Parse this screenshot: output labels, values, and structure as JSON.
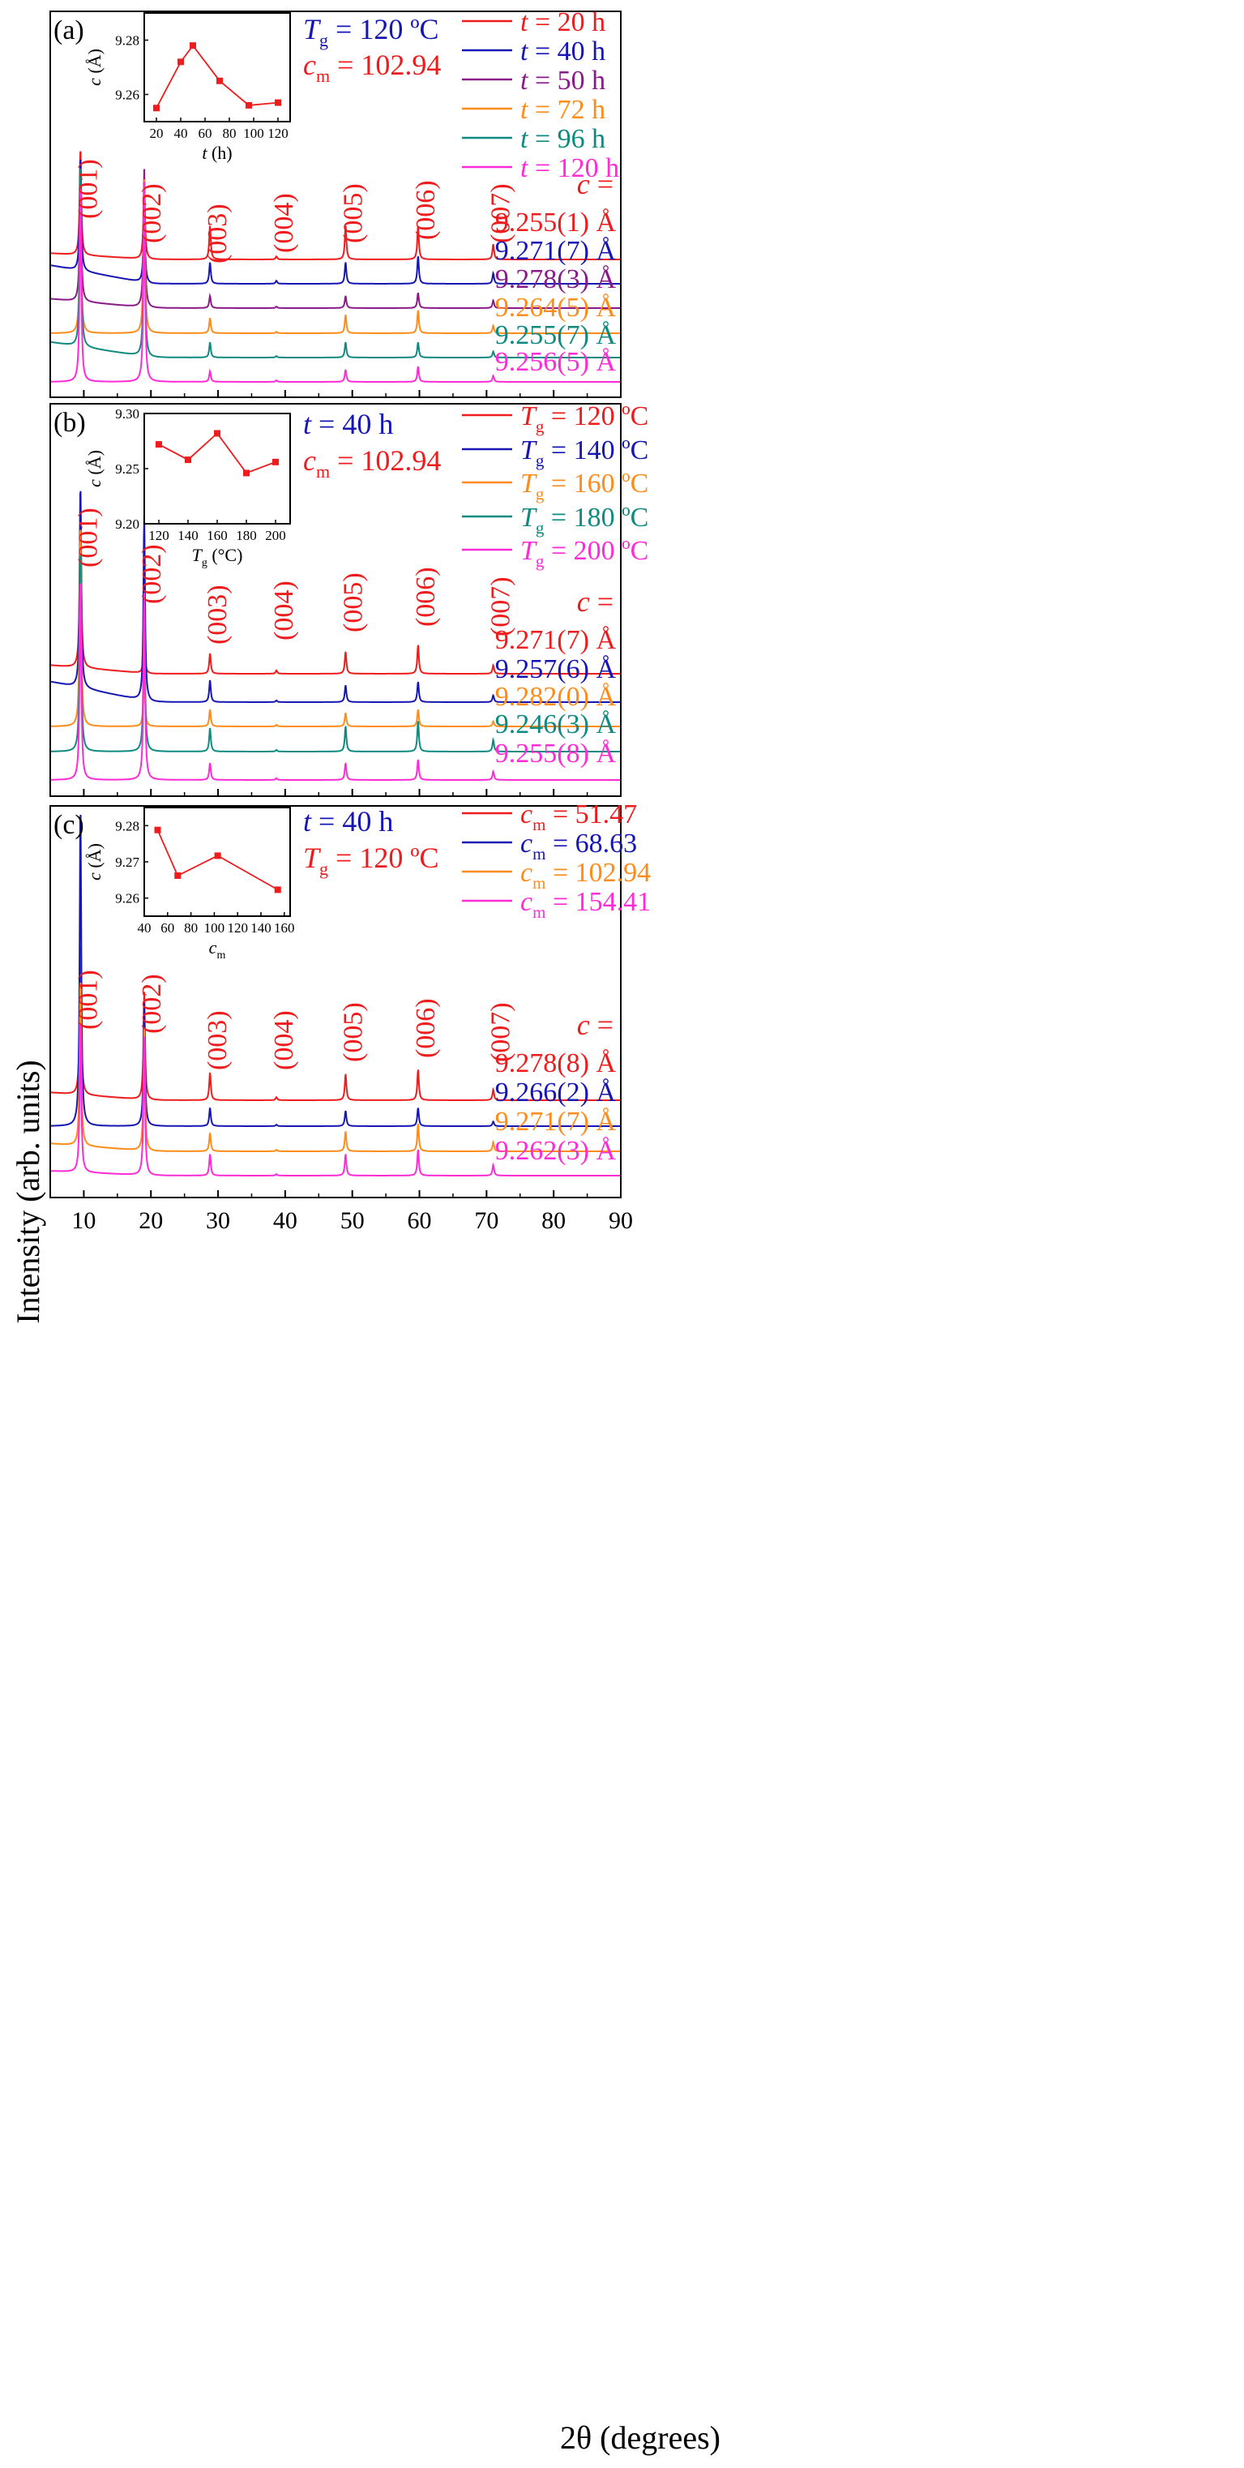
{
  "figure": {
    "ylabel": "Intensity (arb. units)",
    "xlabel": "2θ (degrees)",
    "xlim": [
      5,
      90
    ],
    "xticks": [
      10,
      20,
      30,
      40,
      50,
      60,
      70,
      80,
      90
    ],
    "peak_labels": [
      "(001)",
      "(002)",
      "(003)",
      "(004)",
      "(005)",
      "(006)",
      "(007)"
    ],
    "peak_positions": [
      9.5,
      19.0,
      28.8,
      38.7,
      49.0,
      59.8,
      71.0
    ],
    "c_header": "c ="
  },
  "chart_data": [
    {
      "type": "line",
      "panel_label": "(a)",
      "title_lines": [
        "Tg = 120 ºC",
        "cm = 102.94"
      ],
      "series": [
        {
          "name": "t = 20 h",
          "color": "#ee1c1c",
          "c_label": "9.255(1) Å",
          "peak_heights": [
            0.7,
            0.52,
            0.22,
            0.02,
            0.22,
            0.22,
            0.1
          ],
          "baseline_rise": 0.04
        },
        {
          "name": "t = 40 h",
          "color": "#1616b4",
          "c_label": "9.271(7) Å",
          "peak_heights": [
            0.75,
            0.5,
            0.14,
            0.02,
            0.14,
            0.18,
            0.07
          ],
          "baseline_rise": 0.12
        },
        {
          "name": "t = 50 h",
          "color": "#8a1a8a",
          "c_label": "9.278(3) Å",
          "peak_heights": [
            0.9,
            0.9,
            0.08,
            0.01,
            0.08,
            0.1,
            0.05
          ],
          "baseline_rise": 0.06
        },
        {
          "name": "t = 72 h",
          "color": "#ff8c1a",
          "c_label": "9.264(5) Å",
          "peak_heights": [
            1.0,
            1.0,
            0.1,
            0.01,
            0.12,
            0.15,
            0.05
          ],
          "baseline_rise": 0.0
        },
        {
          "name": "t = 96 h",
          "color": "#0f8a80",
          "c_label": "9.255(7) Å",
          "peak_heights": [
            1.2,
            1.1,
            0.1,
            0.01,
            0.1,
            0.1,
            0.04
          ],
          "baseline_rise": 0.1
        },
        {
          "name": "t = 120 h",
          "color": "#ff2bd6",
          "c_label": "9.256(5) Å",
          "peak_heights": [
            1.3,
            1.3,
            0.07,
            0.01,
            0.08,
            0.1,
            0.04
          ],
          "baseline_rise": 0.0
        }
      ],
      "inset": {
        "xlabel": "t (h)",
        "ylabel": "c (Å)",
        "xlim": [
          10,
          130
        ],
        "ylim": [
          9.25,
          9.29
        ],
        "xticks": [
          20,
          40,
          60,
          80,
          100,
          120
        ],
        "yticks": [
          9.26,
          9.28
        ],
        "x": [
          20,
          40,
          50,
          72,
          96,
          120
        ],
        "y": [
          9.255,
          9.272,
          9.278,
          9.265,
          9.256,
          9.257
        ]
      }
    },
    {
      "type": "line",
      "panel_label": "(b)",
      "title_lines": [
        "t = 40 h",
        "cm = 102.94"
      ],
      "series": [
        {
          "name": "Tg = 120 ºC",
          "color": "#ee1c1c",
          "c_label": "9.271(7) Å",
          "peak_heights": [
            1.0,
            0.2,
            0.12,
            0.02,
            0.13,
            0.17,
            0.05
          ],
          "baseline_rise": 0.05
        },
        {
          "name": "Tg = 140 ºC",
          "color": "#1616b4",
          "c_label": "9.257(6) Å",
          "peak_heights": [
            1.2,
            1.1,
            0.13,
            0.01,
            0.1,
            0.12,
            0.04
          ],
          "baseline_rise": 0.12
        },
        {
          "name": "Tg = 160 ºC",
          "color": "#ff8c1a",
          "c_label": "9.282(0) Å",
          "peak_heights": [
            1.2,
            0.3,
            0.1,
            0.01,
            0.08,
            0.1,
            0.03
          ],
          "baseline_rise": 0.0
        },
        {
          "name": "Tg = 180 ºC",
          "color": "#0f8a80",
          "c_label": "9.246(3) Å",
          "peak_heights": [
            1.2,
            0.9,
            0.14,
            0.01,
            0.15,
            0.18,
            0.07
          ],
          "baseline_rise": 0.0
        },
        {
          "name": "Tg = 200 ºC",
          "color": "#ff2bd6",
          "c_label": "9.255(8) Å",
          "peak_heights": [
            1.2,
            1.1,
            0.1,
            0.01,
            0.1,
            0.12,
            0.05
          ],
          "baseline_rise": 0.0
        }
      ],
      "inset": {
        "xlabel": "Tg (°C)",
        "ylabel": "c (Å)",
        "xlim": [
          110,
          210
        ],
        "ylim": [
          9.2,
          9.3
        ],
        "xticks": [
          120,
          140,
          160,
          180,
          200
        ],
        "yticks": [
          9.2,
          9.25,
          9.3
        ],
        "x": [
          120,
          140,
          160,
          180,
          200
        ],
        "y": [
          9.272,
          9.258,
          9.282,
          9.246,
          9.256
        ]
      }
    },
    {
      "type": "line",
      "panel_label": "(c)",
      "title_lines": [
        "t = 40 h",
        "Tg = 120 ºC"
      ],
      "series": [
        {
          "name": "cm = 51.47",
          "color": "#ee1c1c",
          "c_label": "9.278(8) Å",
          "peak_heights": [
            1.0,
            0.7,
            0.18,
            0.02,
            0.17,
            0.2,
            0.07
          ],
          "baseline_rise": 0.05
        },
        {
          "name": "cm = 68.63",
          "color": "#1616b4",
          "c_label": "9.266(2) Å",
          "peak_heights": [
            2.1,
            0.8,
            0.12,
            0.01,
            0.1,
            0.12,
            0.03
          ],
          "baseline_rise": 0.0
        },
        {
          "name": "cm = 102.94",
          "color": "#ff8c1a",
          "c_label": "9.271(7) Å",
          "peak_heights": [
            1.1,
            0.8,
            0.12,
            0.01,
            0.13,
            0.18,
            0.06
          ],
          "baseline_rise": 0.05
        },
        {
          "name": "cm = 154.41",
          "color": "#ff2bd6",
          "c_label": "9.262(3) Å",
          "peak_heights": [
            1.0,
            0.9,
            0.14,
            0.01,
            0.14,
            0.17,
            0.07
          ],
          "baseline_rise": 0.03
        }
      ],
      "inset": {
        "xlabel": "cm",
        "ylabel": "c (Å)",
        "xlim": [
          40,
          165
        ],
        "ylim": [
          9.255,
          9.285
        ],
        "xticks": [
          40,
          60,
          80,
          100,
          120,
          140,
          160
        ],
        "yticks": [
          9.26,
          9.27,
          9.28
        ],
        "x": [
          51.47,
          68.63,
          102.94,
          154.41
        ],
        "y": [
          9.2788,
          9.2662,
          9.2717,
          9.2623
        ]
      }
    }
  ]
}
